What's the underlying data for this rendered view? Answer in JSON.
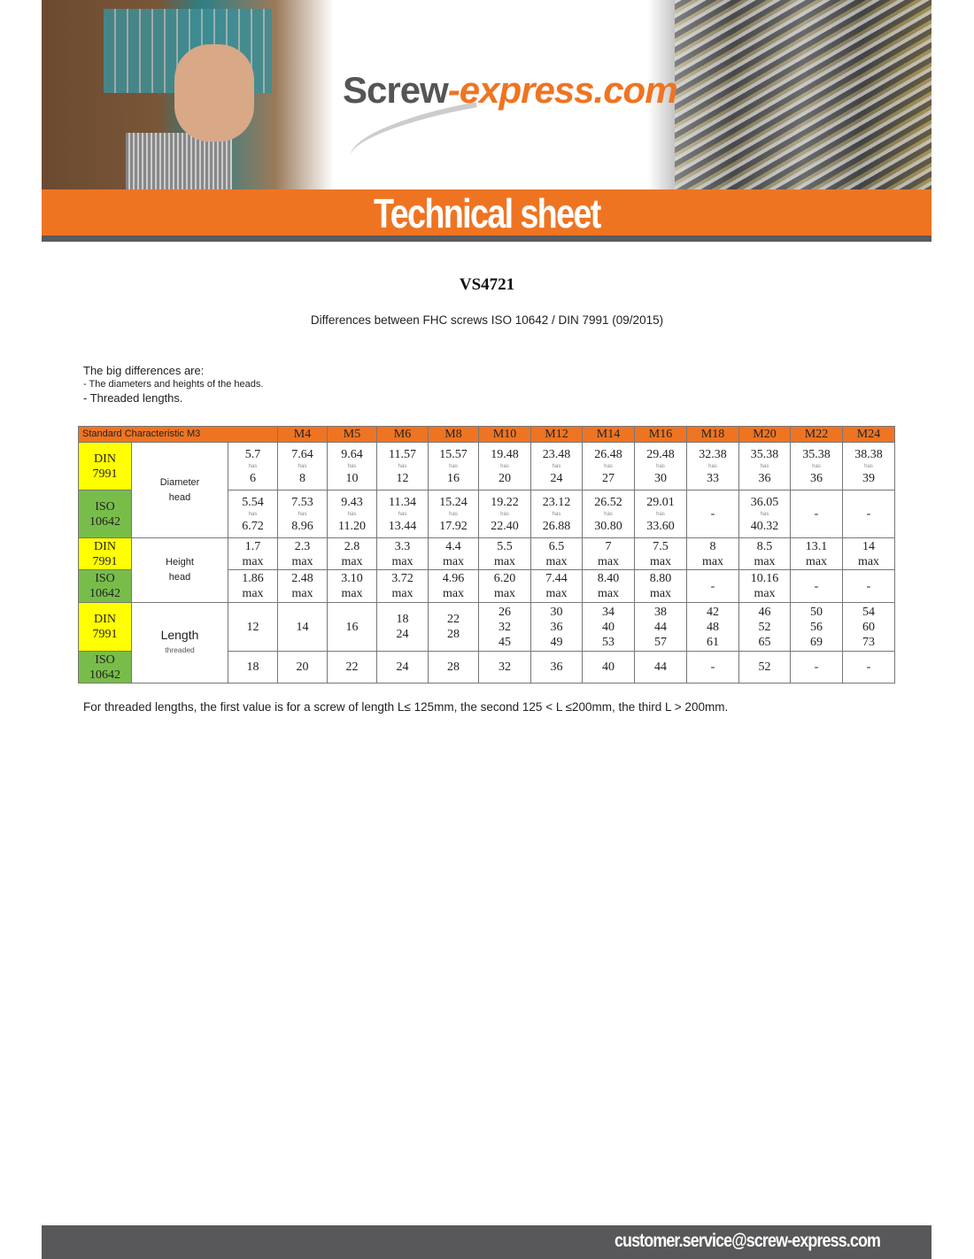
{
  "header": {
    "logo_text_main": "Screw",
    "logo_text_accent": "-express.com",
    "title": "Technical sheet",
    "colors": {
      "orange": "#ef7422",
      "gray": "#5a5b5d",
      "din": "#ffff00",
      "iso": "#78bd4a"
    }
  },
  "document": {
    "code": "VS4721",
    "subtitle": "Differences between FHC screws ISO 10642 / DIN 7991 (09/2015)",
    "intro": [
      "The big differences are:",
      "- The diameters and heights of the heads.",
      "- Threaded lengths."
    ],
    "footnote": "For threaded lengths, the first value is for a screw of length L≤ 125mm, the second 125 < L ≤200mm, the third L > 200mm."
  },
  "table": {
    "header_label": "Standard Characteristic M3",
    "sizes": [
      "M4",
      "M5",
      "M6",
      "M8",
      "M10",
      "M12",
      "M14",
      "M16",
      "M18",
      "M20",
      "M22",
      "M24"
    ],
    "standards": {
      "din": [
        "DIN",
        "7991"
      ],
      "iso": [
        "ISO",
        "10642"
      ]
    },
    "characteristics": {
      "diameter": [
        "Diameter",
        "head"
      ],
      "height": [
        "Height",
        "head"
      ],
      "length": [
        "Length",
        "threaded"
      ]
    },
    "rows": {
      "diameter_din": [
        [
          "5.7",
          "has",
          "6"
        ],
        [
          "7.64",
          "has",
          "8"
        ],
        [
          "9.64",
          "has",
          "10"
        ],
        [
          "11.57",
          "has",
          "12"
        ],
        [
          "15.57",
          "has",
          "16"
        ],
        [
          "19.48",
          "has",
          "20"
        ],
        [
          "23.48",
          "has",
          "24"
        ],
        [
          "26.48",
          "has",
          "27"
        ],
        [
          "29.48",
          "has",
          "30"
        ],
        [
          "32.38",
          "has",
          "33"
        ],
        [
          "35.38",
          "has",
          "36"
        ],
        [
          "35.38",
          "has",
          "36"
        ],
        [
          "38.38",
          "has",
          "39"
        ]
      ],
      "diameter_iso": [
        [
          "5.54",
          "has",
          "6.72"
        ],
        [
          "7.53",
          "has",
          "8.96"
        ],
        [
          "9.43",
          "has",
          "11.20"
        ],
        [
          "11.34",
          "has",
          "13.44"
        ],
        [
          "15.24",
          "has",
          "17.92"
        ],
        [
          "19.22",
          "has",
          "22.40"
        ],
        [
          "23.12",
          "has",
          "26.88"
        ],
        [
          "26.52",
          "has",
          "30.80"
        ],
        [
          "29.01",
          "has",
          "33.60"
        ],
        [
          "-"
        ],
        [
          "36.05",
          "has",
          "40.32"
        ],
        [
          "-"
        ],
        [
          "-"
        ]
      ],
      "height_din": [
        [
          "1.7",
          "max"
        ],
        [
          "2.3",
          "max"
        ],
        [
          "2.8",
          "max"
        ],
        [
          "3.3",
          "max"
        ],
        [
          "4.4",
          "max"
        ],
        [
          "5.5",
          "max"
        ],
        [
          "6.5",
          "max"
        ],
        [
          "7",
          "max"
        ],
        [
          "7.5",
          "max"
        ],
        [
          "8",
          "max"
        ],
        [
          "8.5",
          "max"
        ],
        [
          "13.1",
          "max"
        ],
        [
          "14",
          "max"
        ]
      ],
      "height_iso": [
        [
          "1.86",
          "max"
        ],
        [
          "2.48",
          "max"
        ],
        [
          "3.10",
          "max"
        ],
        [
          "3.72",
          "max"
        ],
        [
          "4.96",
          "max"
        ],
        [
          "6.20",
          "max"
        ],
        [
          "7.44",
          "max"
        ],
        [
          "8.40",
          "max"
        ],
        [
          "8.80",
          "max"
        ],
        [
          "-"
        ],
        [
          "10.16",
          "max"
        ],
        [
          "-"
        ],
        [
          "-"
        ]
      ],
      "length_din": [
        [
          "12"
        ],
        [
          "14"
        ],
        [
          "16"
        ],
        [
          "18",
          "24"
        ],
        [
          "22",
          "28"
        ],
        [
          "26",
          "32",
          "45"
        ],
        [
          "30",
          "36",
          "49"
        ],
        [
          "34",
          "40",
          "53"
        ],
        [
          "38",
          "44",
          "57"
        ],
        [
          "42",
          "48",
          "61"
        ],
        [
          "46",
          "52",
          "65"
        ],
        [
          "50",
          "56",
          "69"
        ],
        [
          "54",
          "60",
          "73"
        ]
      ],
      "length_iso": [
        [
          "18"
        ],
        [
          "20"
        ],
        [
          "22"
        ],
        [
          "24"
        ],
        [
          "28"
        ],
        [
          "32"
        ],
        [
          "36"
        ],
        [
          "40"
        ],
        [
          "44"
        ],
        [
          "-"
        ],
        [
          "52"
        ],
        [
          "-"
        ],
        [
          "-"
        ]
      ]
    }
  },
  "footer": {
    "email": "customer.service@screw-express.com"
  }
}
